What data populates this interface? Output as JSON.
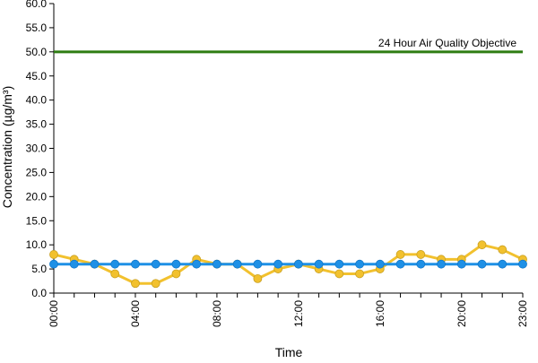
{
  "chart_data": {
    "type": "line",
    "title": "",
    "xlabel": "Time",
    "ylabel": "Concentration (µg/m³)",
    "ylim": [
      0,
      60
    ],
    "yticks": [
      "0.0",
      "5.0",
      "10.0",
      "15.0",
      "20.0",
      "25.0",
      "30.0",
      "35.0",
      "40.0",
      "45.0",
      "50.0",
      "55.0",
      "60.0"
    ],
    "x": [
      "00:00",
      "01:00",
      "02:00",
      "03:00",
      "04:00",
      "05:00",
      "06:00",
      "07:00",
      "08:00",
      "09:00",
      "10:00",
      "11:00",
      "12:00",
      "13:00",
      "14:00",
      "15:00",
      "16:00",
      "17:00",
      "18:00",
      "19:00",
      "20:00",
      "21:00",
      "22:00",
      "23:00"
    ],
    "xtick_labels": [
      "00:00",
      "04:00",
      "08:00",
      "12:00",
      "16:00",
      "20:00",
      "23:00"
    ],
    "grid": false,
    "legend": "none",
    "series": [
      {
        "color": "#f2c12e",
        "values": [
          8,
          7,
          6,
          4,
          2,
          2,
          4,
          7,
          6,
          6,
          3,
          5,
          6,
          5,
          4,
          4,
          5,
          8,
          8,
          7,
          7,
          10,
          9,
          7
        ]
      },
      {
        "color": "#1e90e6",
        "values": [
          6,
          6,
          6,
          6,
          6,
          6,
          6,
          6,
          6,
          6,
          6,
          6,
          6,
          6,
          6,
          6,
          6,
          6,
          6,
          6,
          6,
          6,
          6,
          6
        ]
      }
    ],
    "reference_line": {
      "value": 50,
      "label": "24 Hour Air Quality Objective",
      "color": "#2e7d12"
    }
  }
}
